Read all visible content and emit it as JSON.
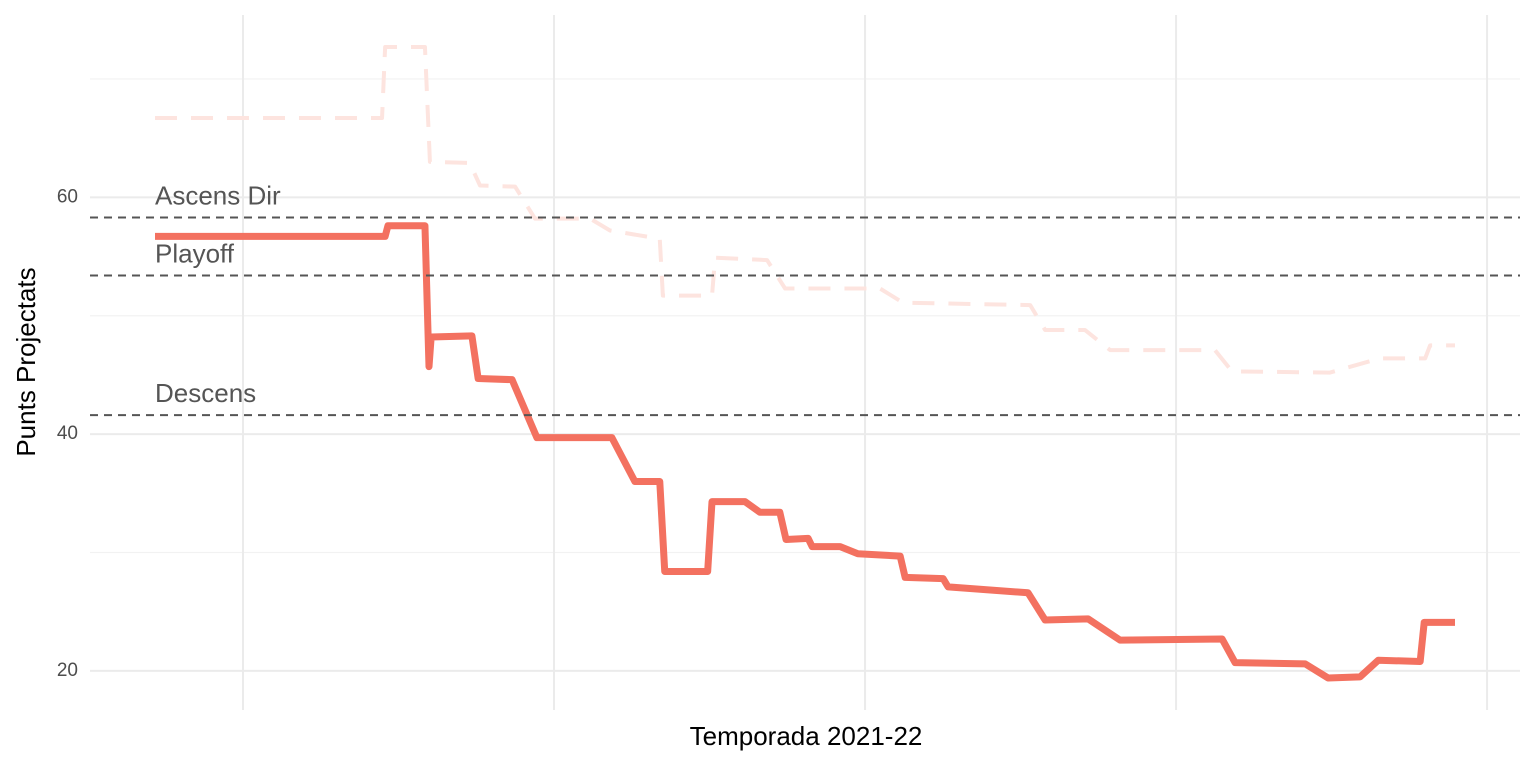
{
  "chart_data": {
    "type": "line",
    "x_label": "Temporada 2021-22",
    "y_label": "Punts Projectats",
    "xlim": [
      50.8,
      510.6
    ],
    "xticks": [
      100,
      200,
      300,
      400,
      500
    ],
    "ylim": [
      16.7,
      75.4
    ],
    "yticks": [
      20,
      40,
      60
    ],
    "yminor": [
      30,
      50,
      70
    ],
    "grid": true,
    "series": [
      {
        "color": "#fde4df",
        "dash": true,
        "x": [
          71.7,
          144.7,
          145.7,
          158.5,
          160.1,
          172.9,
          176.2,
          187.5,
          193.9,
          211.6,
          218,
          234,
          235,
          250.8,
          251.8,
          268.5,
          274.3,
          304.8,
          312.2,
          353.1,
          357.9,
          370.7,
          378.8,
          412.5,
          418,
          449.5,
          465.6,
          480.1,
          481.7,
          489.7
        ],
        "values": [
          66.7,
          66.7,
          72.7,
          72.7,
          63.0,
          62.9,
          61.0,
          60.9,
          58.2,
          58.2,
          57.2,
          56.5,
          51.7,
          51.7,
          54.9,
          54.7,
          52.3,
          52.3,
          51.1,
          50.9,
          48.8,
          48.8,
          47.1,
          47.1,
          45.3,
          45.2,
          46.4,
          46.4,
          47.5,
          47.5
        ]
      },
      {
        "color": "#f37160",
        "dash": false,
        "x": [
          71.7,
          145.7,
          146.6,
          158.5,
          159.8,
          160.5,
          173.6,
          175.6,
          186.5,
          194.5,
          218.6,
          226,
          234,
          235.6,
          249.4,
          250.8,
          261.4,
          266.2,
          272.6,
          274.6,
          281.7,
          283,
          292,
          297.7,
          311.3,
          312.9,
          325.1,
          326.7,
          352.4,
          357.9,
          371.7,
          382,
          414.8,
          419,
          441.5,
          448.9,
          459.2,
          465,
          478.5,
          479.8,
          489.7
        ],
        "values": [
          56.7,
          56.7,
          57.6,
          57.6,
          45.7,
          48.2,
          48.3,
          44.7,
          44.6,
          39.7,
          39.7,
          36.0,
          36.0,
          28.4,
          28.4,
          34.3,
          34.3,
          33.4,
          33.4,
          31.1,
          31.2,
          30.5,
          30.5,
          29.9,
          29.7,
          27.9,
          27.8,
          27.1,
          26.6,
          24.3,
          24.4,
          22.6,
          22.7,
          20.7,
          20.6,
          19.4,
          19.5,
          20.9,
          20.8,
          24.1,
          24.1
        ]
      }
    ],
    "reference_lines": [
      {
        "label": "Ascens Dir",
        "value": 58.3
      },
      {
        "label": "Playoff",
        "value": 53.4
      },
      {
        "label": "Descens",
        "value": 41.6
      }
    ]
  }
}
